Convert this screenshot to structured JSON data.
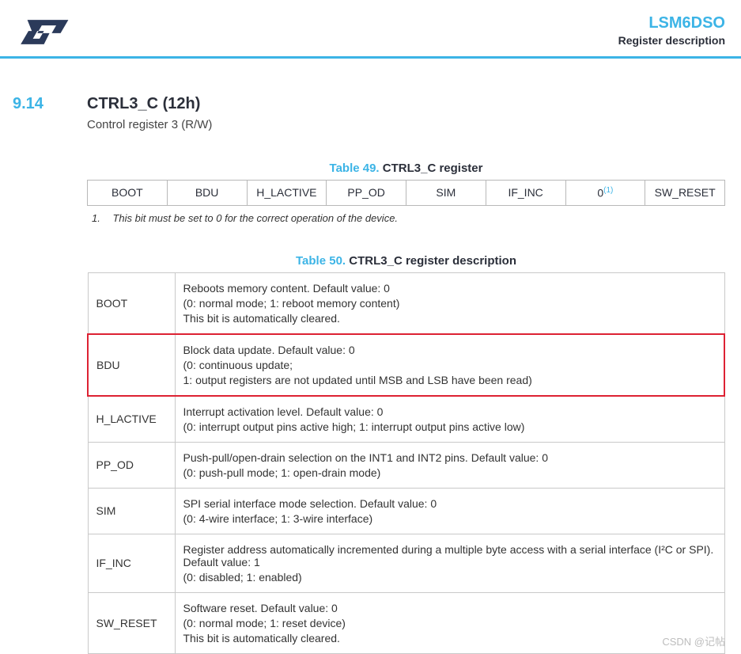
{
  "header": {
    "product": "LSM6DSO",
    "subtitle": "Register description"
  },
  "section": {
    "number": "9.14",
    "title": "CTRL3_C (12h)",
    "subtitle": "Control register 3 (R/W)"
  },
  "table49": {
    "caption_num": "Table 49.",
    "caption_name": "CTRL3_C register",
    "bits": [
      "BOOT",
      "BDU",
      "H_LACTIVE",
      "PP_OD",
      "SIM",
      "IF_INC",
      "0",
      "SW_RESET"
    ],
    "sup_index": 6,
    "sup_text": "(1)",
    "footnote_num": "1.",
    "footnote_text": "This bit must be set to 0 for the correct operation of the device."
  },
  "table50": {
    "caption_num": "Table 50.",
    "caption_name": "CTRL3_C register description",
    "highlight_row_index": 1,
    "rows": [
      {
        "name": "BOOT",
        "lines": [
          "Reboots memory content. Default value: 0",
          "(0: normal mode; 1: reboot memory content)",
          "This bit is automatically cleared."
        ]
      },
      {
        "name": "BDU",
        "lines": [
          "Block data update. Default value: 0",
          "(0: continuous update;",
          "1: output registers are not updated until MSB and LSB have been read)"
        ]
      },
      {
        "name": "H_LACTIVE",
        "lines": [
          "Interrupt activation level. Default value: 0",
          "(0: interrupt output pins active high; 1: interrupt output pins active low)"
        ]
      },
      {
        "name": "PP_OD",
        "lines": [
          "Push-pull/open-drain selection on the INT1 and INT2 pins. Default value: 0",
          "(0: push-pull mode; 1: open-drain mode)"
        ]
      },
      {
        "name": "SIM",
        "lines": [
          "SPI serial interface mode selection. Default value: 0",
          "(0: 4-wire interface; 1: 3-wire interface)"
        ]
      },
      {
        "name": "IF_INC",
        "lines": [
          "Register address automatically incremented during a multiple byte access with a serial interface (I²C or SPI). Default value: 1",
          "(0: disabled; 1: enabled)"
        ]
      },
      {
        "name": "SW_RESET",
        "lines": [
          "Software reset. Default value: 0",
          "(0: normal mode; 1: reset device)",
          "This bit is automatically cleared."
        ]
      }
    ]
  },
  "watermark": "CSDN @记帖"
}
